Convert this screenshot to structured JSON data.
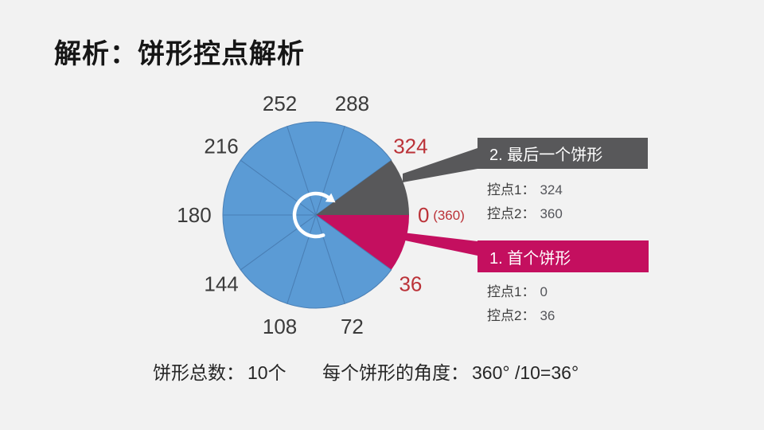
{
  "slide": {
    "title": "解析：饼形控点解析"
  },
  "colors": {
    "background": "#F2F2F2",
    "blue": "#5B9BD5",
    "blueStroke": "#4A7FB5",
    "gray": "#58585A",
    "crimson": "#C40F5F",
    "redLabel": "#BB3238",
    "darkText": "#3B3B3B",
    "white": "#FFFFFF"
  },
  "chart_data": {
    "type": "pie",
    "total_slices": 10,
    "slice_angle_degrees": 36,
    "angle_origin": "0 at 3 o'clock, increasing clockwise",
    "slices": [
      {
        "from": 0,
        "to": 36,
        "color": "crimson",
        "label": "首个饼形"
      },
      {
        "from": 36,
        "to": 72,
        "color": "blue"
      },
      {
        "from": 72,
        "to": 108,
        "color": "blue"
      },
      {
        "from": 108,
        "to": 144,
        "color": "blue"
      },
      {
        "from": 144,
        "to": 180,
        "color": "blue"
      },
      {
        "from": 180,
        "to": 216,
        "color": "blue"
      },
      {
        "from": 216,
        "to": 252,
        "color": "blue"
      },
      {
        "from": 252,
        "to": 288,
        "color": "blue"
      },
      {
        "from": 288,
        "to": 324,
        "color": "blue"
      },
      {
        "from": 324,
        "to": 360,
        "color": "gray",
        "label": "最后一个饼形"
      }
    ],
    "boundary_labels": [
      {
        "angle": 0,
        "text": "0",
        "suffix": " (360)",
        "emphasis": true
      },
      {
        "angle": 36,
        "text": "36",
        "emphasis": true
      },
      {
        "angle": 72,
        "text": "72"
      },
      {
        "angle": 108,
        "text": "108"
      },
      {
        "angle": 144,
        "text": "144"
      },
      {
        "angle": 180,
        "text": "180"
      },
      {
        "angle": 216,
        "text": "216"
      },
      {
        "angle": 252,
        "text": "252"
      },
      {
        "angle": 288,
        "text": "288"
      },
      {
        "angle": 324,
        "text": "324",
        "emphasis": true
      }
    ]
  },
  "callouts": {
    "last": {
      "title": "2. 最后一个饼形",
      "lines": [
        {
          "label": "控点1：",
          "value": "324"
        },
        {
          "label": "控点2：",
          "value": "360"
        }
      ]
    },
    "first": {
      "title": "1. 首个饼形",
      "lines": [
        {
          "label": "控点1：",
          "value": "0"
        },
        {
          "label": "控点2：",
          "value": "36"
        }
      ]
    }
  },
  "footer": {
    "total": {
      "label": "饼形总数：",
      "value": "10个"
    },
    "angle": {
      "label": "每个饼形的角度：",
      "value": "360° /10=36°"
    }
  }
}
